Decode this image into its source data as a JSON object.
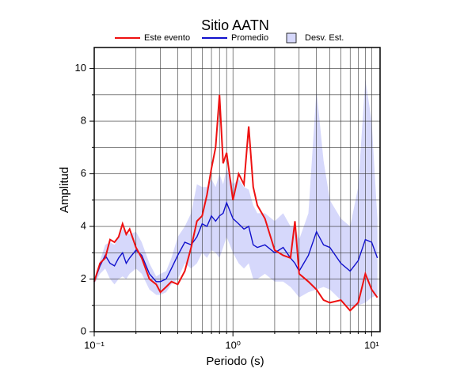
{
  "chart_data": {
    "type": "line",
    "title": "Sitio AATN",
    "x_label": "Periodo (s)",
    "y_label": "Amplitud",
    "x_scale": "log",
    "xlim": [
      0.1,
      11.5
    ],
    "ylim": [
      0,
      10.8
    ],
    "xticks": [
      {
        "value": 0.1,
        "label": "10⁻¹"
      },
      {
        "value": 1,
        "label": "10⁰"
      },
      {
        "value": 10,
        "label": "10¹"
      }
    ],
    "x_minor_ticks": [
      0.2,
      0.3,
      0.4,
      0.5,
      0.6,
      0.7,
      0.8,
      0.9,
      2,
      3,
      4,
      5,
      6,
      7,
      8,
      9
    ],
    "yticks": [
      0,
      2,
      4,
      6,
      8,
      10
    ],
    "y_minor_ticks": [
      1,
      3,
      5,
      7,
      9
    ],
    "grid": true,
    "legend": "top-outside",
    "x": [
      0.1,
      0.11,
      0.12,
      0.13,
      0.14,
      0.15,
      0.16,
      0.17,
      0.18,
      0.2,
      0.22,
      0.25,
      0.28,
      0.3,
      0.33,
      0.36,
      0.4,
      0.45,
      0.5,
      0.55,
      0.6,
      0.65,
      0.7,
      0.75,
      0.8,
      0.85,
      0.9,
      1,
      1.1,
      1.2,
      1.3,
      1.4,
      1.5,
      1.7,
      2,
      2.3,
      2.6,
      2.8,
      3,
      3.5,
      4,
      4.5,
      5,
      6,
      7,
      8,
      9,
      10,
      11
    ],
    "series": [
      {
        "name": "Este evento",
        "color": "#ee1111",
        "values": [
          1.9,
          2.6,
          2.8,
          3.5,
          3.4,
          3.6,
          4.1,
          3.7,
          3.9,
          3.2,
          2.8,
          2.0,
          1.8,
          1.5,
          1.7,
          1.9,
          1.8,
          2.3,
          3.2,
          4.2,
          4.4,
          5.2,
          6.2,
          7.0,
          9.0,
          6.4,
          6.8,
          5.0,
          6.0,
          5.6,
          7.8,
          5.5,
          4.8,
          4.3,
          3.1,
          2.9,
          2.8,
          4.2,
          2.2,
          1.9,
          1.6,
          1.2,
          1.1,
          1.2,
          0.8,
          1.1,
          2.2,
          1.6,
          1.3
        ]
      },
      {
        "name": "Promedio",
        "color": "#1111cc",
        "values": [
          1.9,
          2.5,
          2.9,
          2.6,
          2.5,
          2.8,
          3.0,
          2.6,
          2.8,
          3.1,
          2.9,
          2.2,
          1.9,
          1.9,
          2.0,
          2.4,
          2.9,
          3.4,
          3.3,
          3.6,
          4.1,
          4.0,
          4.4,
          4.2,
          4.4,
          4.5,
          4.9,
          4.3,
          4.1,
          3.9,
          4.0,
          3.3,
          3.2,
          3.3,
          3.0,
          3.2,
          2.8,
          2.6,
          2.3,
          2.9,
          3.8,
          3.3,
          3.2,
          2.6,
          2.3,
          2.7,
          3.5,
          3.4,
          2.8
        ]
      },
      {
        "name": "Desv. Est.",
        "color": "#d6d8fb",
        "upper": [
          2.0,
          2.7,
          3.3,
          3.4,
          3.3,
          3.6,
          3.9,
          3.8,
          3.7,
          3.8,
          3.4,
          2.6,
          2.1,
          2.2,
          2.3,
          2.8,
          3.6,
          4.0,
          4.5,
          5.6,
          5.5,
          5.5,
          5.8,
          5.5,
          6.0,
          5.6,
          6.2,
          5.6,
          5.8,
          5.5,
          5.4,
          4.8,
          4.5,
          4.5,
          4.2,
          4.5,
          4.0,
          4.0,
          3.5,
          4.5,
          9.2,
          6.5,
          5.0,
          4.3,
          4.0,
          5.5,
          9.6,
          8.0,
          4.3
        ],
        "lower": [
          1.8,
          2.2,
          2.4,
          2.0,
          1.8,
          2.0,
          2.1,
          2.0,
          2.2,
          2.4,
          2.2,
          1.6,
          1.4,
          1.4,
          1.5,
          1.8,
          2.0,
          2.6,
          2.4,
          2.6,
          3.0,
          2.8,
          3.1,
          3.0,
          2.8,
          3.2,
          3.6,
          3.0,
          2.6,
          2.4,
          2.6,
          2.0,
          2.0,
          2.2,
          1.9,
          1.9,
          1.7,
          1.5,
          1.3,
          1.5,
          1.6,
          1.7,
          1.6,
          1.2,
          0.9,
          1.0,
          1.1,
          1.3,
          1.4
        ]
      }
    ]
  }
}
